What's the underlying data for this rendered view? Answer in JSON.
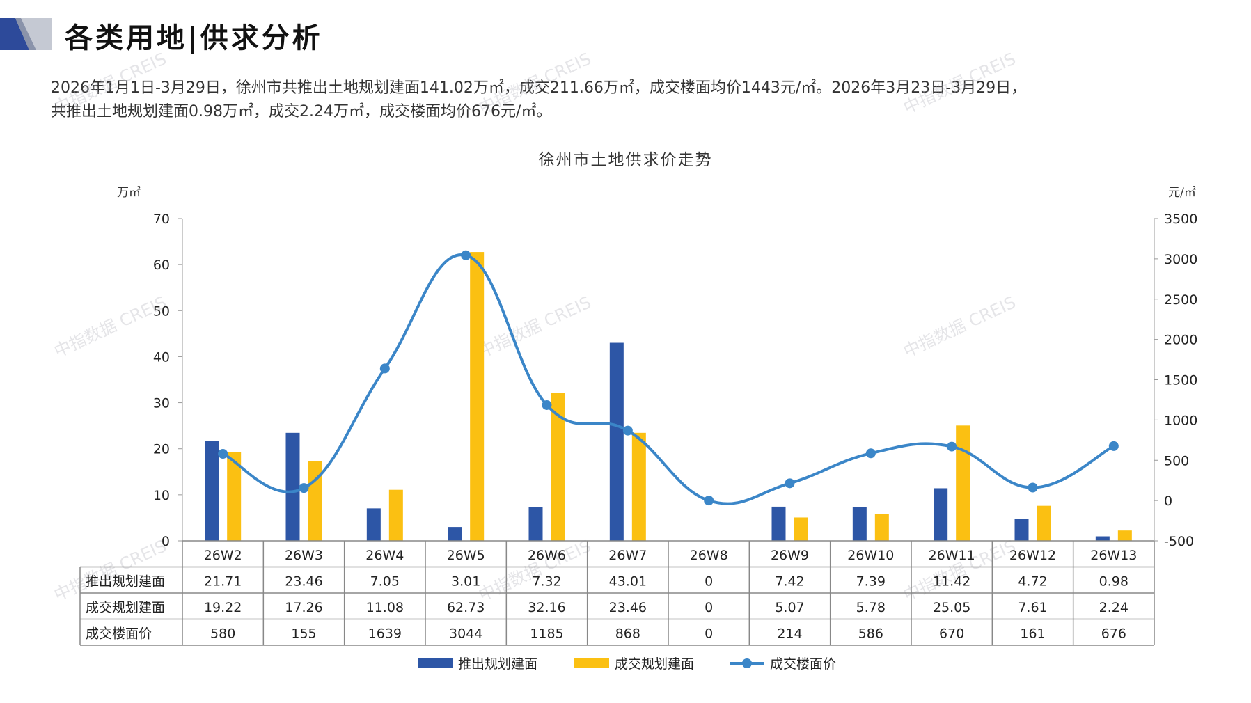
{
  "page": {
    "title": "各类用地|供求分析",
    "summary_line1": "2026年1月1日-3月29日，徐州市共推出土地规划建面141.02万㎡，成交211.66万㎡，成交楼面均价1443元/㎡。2026年3月23日-3月29日，",
    "summary_line2": "共推出土地规划建面0.98万㎡，成交2.24万㎡，成交楼面均价676元/㎡。",
    "watermark": "中指数据 CREIS"
  },
  "colors": {
    "supply": "#2d56a6",
    "deal": "#fbc012",
    "price": "#3b86c8",
    "logo_dark": "#2d4a9a",
    "logo_light": "#c5c9d3"
  },
  "chart_data": {
    "type": "bar",
    "title": "徐州市土地供求价走势",
    "ylabel_left": "万㎡",
    "ylabel_right": "元/㎡",
    "ylim_left": [
      0,
      70
    ],
    "yticks_left": [
      0,
      10,
      20,
      30,
      40,
      50,
      60,
      70
    ],
    "ylim_right": [
      -500,
      3500
    ],
    "yticks_right": [
      -500,
      0,
      500,
      1000,
      1500,
      2000,
      2500,
      3000,
      3500
    ],
    "categories": [
      "26W2",
      "26W3",
      "26W4",
      "26W5",
      "26W6",
      "26W7",
      "26W8",
      "26W9",
      "26W10",
      "26W11",
      "26W12",
      "26W13"
    ],
    "series": [
      {
        "name": "推出规划建面",
        "type": "bar",
        "axis": "left",
        "values": [
          21.71,
          23.46,
          7.05,
          3.01,
          7.32,
          43.01,
          0,
          7.42,
          7.39,
          11.42,
          4.72,
          0.98
        ],
        "labels": [
          "21.71",
          "23.46",
          "7.05",
          "3.01",
          "7.32",
          "43.01",
          "0",
          "7.42",
          "7.39",
          "11.42",
          "4.72",
          "0.98"
        ]
      },
      {
        "name": "成交规划建面",
        "type": "bar",
        "axis": "left",
        "values": [
          19.22,
          17.26,
          11.08,
          62.73,
          32.16,
          23.46,
          0,
          5.07,
          5.78,
          25.05,
          7.61,
          2.24
        ],
        "labels": [
          "19.22",
          "17.26",
          "11.08",
          "62.73",
          "32.16",
          "23.46",
          "0",
          "5.07",
          "5.78",
          "25.05",
          "7.61",
          "2.24"
        ]
      },
      {
        "name": "成交楼面价",
        "type": "line",
        "axis": "right",
        "values": [
          580,
          155,
          1639,
          3044,
          1185,
          868,
          0,
          214,
          586,
          670,
          161,
          676
        ],
        "labels": [
          "580",
          "155",
          "1639",
          "3044",
          "1185",
          "868",
          "0",
          "214",
          "586",
          "670",
          "161",
          "676"
        ]
      }
    ],
    "legend_position": "bottom",
    "grid": false
  }
}
